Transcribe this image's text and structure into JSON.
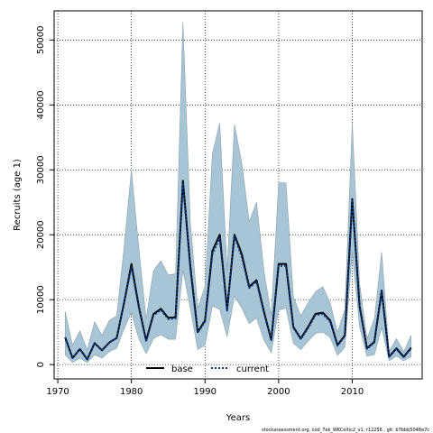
{
  "chart_data": {
    "type": "line",
    "title": "",
    "xlabel": "Years",
    "ylabel": "Recruits (age 1)",
    "xlim": [
      1969.5,
      2019.5
    ],
    "ylim": [
      -2200,
      54500
    ],
    "xticks": [
      1970,
      1980,
      1990,
      2000,
      2010
    ],
    "yticks": [
      0,
      10000,
      20000,
      30000,
      40000,
      50000
    ],
    "grid": true,
    "legend_position": "bottom-center",
    "x": [
      1971,
      1972,
      1973,
      1974,
      1975,
      1976,
      1977,
      1978,
      1979,
      1980,
      1981,
      1982,
      1983,
      1984,
      1985,
      1986,
      1987,
      1988,
      1989,
      1990,
      1991,
      1992,
      1993,
      1994,
      1995,
      1996,
      1997,
      1998,
      1999,
      2000,
      2001,
      2002,
      2003,
      2004,
      2005,
      2006,
      2007,
      2008,
      2009,
      2010,
      2011,
      2012,
      2013,
      2014,
      2015,
      2016,
      2017,
      2018
    ],
    "band": {
      "color": "#a7c5d5",
      "edge_color": "#8aa0ab",
      "upper": [
        8200,
        3000,
        5200,
        2300,
        6600,
        4500,
        6800,
        7500,
        18000,
        30000,
        18000,
        7000,
        14500,
        16000,
        13800,
        14000,
        52800,
        22000,
        8700,
        12000,
        32500,
        37200,
        14500,
        37000,
        31000,
        22000,
        25000,
        14500,
        7500,
        28000,
        28000,
        10500,
        7500,
        9500,
        11200,
        12000,
        9500,
        5000,
        8500,
        37300,
        12500,
        4000,
        7000,
        17300,
        2000,
        4000,
        2000,
        4500
      ],
      "lower": [
        1500,
        300,
        1000,
        300,
        1500,
        1000,
        2000,
        2500,
        5500,
        8000,
        4000,
        1700,
        4000,
        4600,
        3900,
        3900,
        14500,
        8700,
        2300,
        3000,
        9000,
        8500,
        4300,
        10500,
        8700,
        6300,
        7200,
        3800,
        1800,
        8400,
        8700,
        3300,
        2300,
        3600,
        4800,
        5000,
        4200,
        1400,
        2700,
        17300,
        5800,
        1300,
        1500,
        5700,
        600,
        1300,
        600,
        1200
      ]
    },
    "series": [
      {
        "name": "base",
        "color": "#000000",
        "style": "solid",
        "values": [
          4200,
          1000,
          2400,
          800,
          3300,
          2200,
          3400,
          4100,
          9500,
          15500,
          9000,
          3700,
          7800,
          8600,
          7200,
          7300,
          28300,
          15200,
          5000,
          6800,
          17500,
          20000,
          8500,
          20000,
          17000,
          12000,
          13000,
          8200,
          3800,
          15500,
          15500,
          5800,
          4000,
          5800,
          7800,
          8000,
          6800,
          3000,
          4500,
          25500,
          9000,
          2500,
          3500,
          11400,
          1200,
          2500,
          1200,
          2600
        ]
      },
      {
        "name": "current",
        "color": "#0a3b8c",
        "style": "dotted",
        "values": [
          4200,
          1000,
          2400,
          800,
          3300,
          2200,
          3400,
          4100,
          9500,
          15000,
          8800,
          3600,
          7600,
          8400,
          7000,
          7100,
          28000,
          14800,
          4900,
          6600,
          17000,
          19500,
          8300,
          19800,
          16500,
          11800,
          12800,
          8000,
          3700,
          15200,
          15200,
          5700,
          3900,
          5600,
          7600,
          7800,
          6600,
          2900,
          4400,
          25200,
          8800,
          2400,
          3400,
          11200,
          1200,
          2400,
          1100,
          2500
        ]
      }
    ]
  },
  "footer": "stockassessment.org, cod_7ek_WKCeltic2_v1, r12256 , git: b7bbb5048e7c"
}
